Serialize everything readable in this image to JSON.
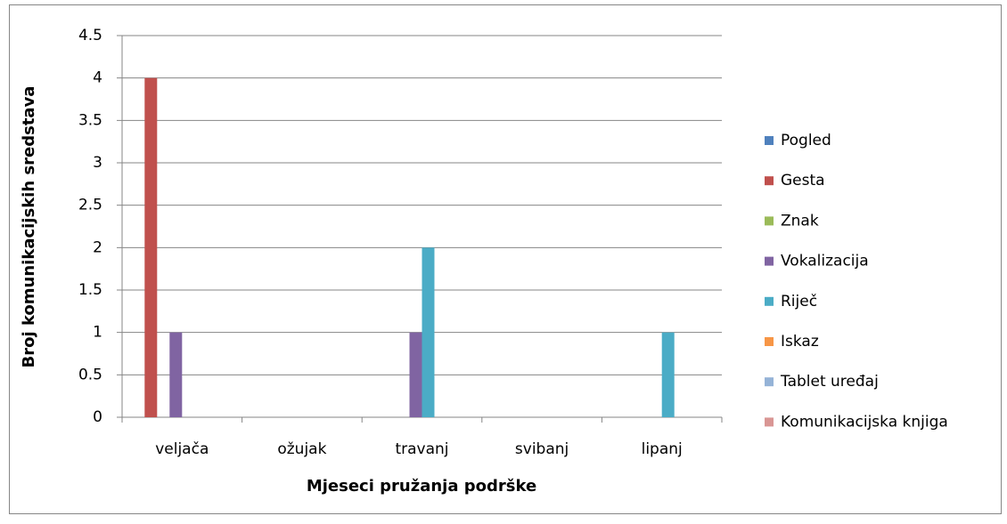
{
  "chart_data": {
    "type": "bar",
    "xlabel": "Mjeseci pružanja podrške",
    "ylabel": "Broj komunikacijskih sredstava",
    "categories": [
      "veljača",
      "ožujak",
      "travanj",
      "svibanj",
      "lipanj"
    ],
    "series": [
      {
        "name": "Pogled",
        "color": "#4f81bd",
        "values": [
          0,
          0,
          0,
          0,
          0
        ]
      },
      {
        "name": "Gesta",
        "color": "#c0504d",
        "values": [
          4,
          0,
          0,
          0,
          0
        ]
      },
      {
        "name": "Znak",
        "color": "#9bbb59",
        "values": [
          0,
          0,
          0,
          0,
          0
        ]
      },
      {
        "name": "Vokalizacija",
        "color": "#8064a2",
        "values": [
          1,
          0,
          1,
          0,
          0
        ]
      },
      {
        "name": "Riječ",
        "color": "#4bacc6",
        "values": [
          0,
          0,
          2,
          0,
          1
        ]
      },
      {
        "name": "Iskaz",
        "color": "#f79646",
        "values": [
          0,
          0,
          0,
          0,
          0
        ]
      },
      {
        "name": "Tablet uređaj",
        "color": "#95b3d7",
        "values": [
          0,
          0,
          0,
          0,
          0
        ]
      },
      {
        "name": "Komunikacijska knjiga",
        "color": "#d99694",
        "values": [
          0,
          0,
          0,
          0,
          0
        ]
      }
    ],
    "ylim": [
      0,
      4.5
    ],
    "yticks": [
      0,
      0.5,
      1,
      1.5,
      2,
      2.5,
      3,
      3.5,
      4,
      4.5
    ],
    "grid": true,
    "legend": "right"
  }
}
